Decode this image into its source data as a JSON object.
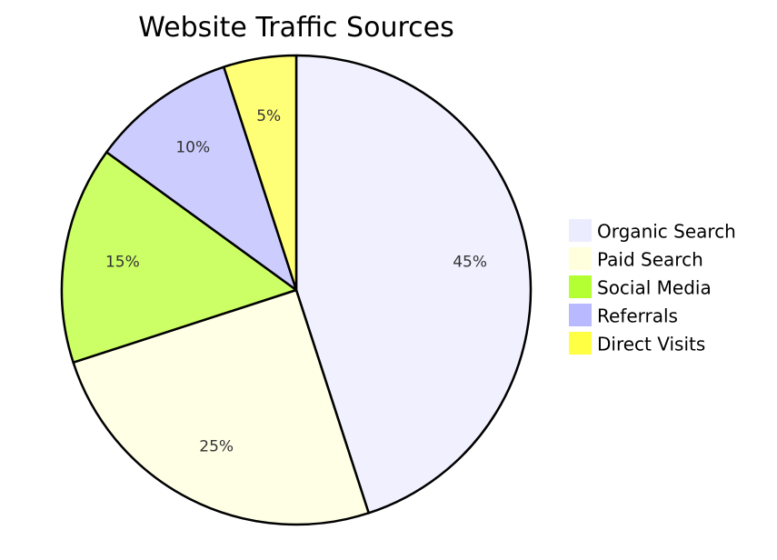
{
  "chart_data": {
    "type": "pie",
    "title": "Website Traffic Sources",
    "categories": [
      "Organic Search",
      "Paid Search",
      "Social Media",
      "Referrals",
      "Direct Visits"
    ],
    "values": [
      45,
      25,
      15,
      10,
      5
    ],
    "labels": [
      "45%",
      "25%",
      "15%",
      "10%",
      "5%"
    ],
    "slice_colors": [
      "#f0f0ff",
      "#ffffe6",
      "#ccff66",
      "#ccccff",
      "#ffff77"
    ],
    "legend_colors": [
      "#ececff",
      "#ffffde",
      "#b3ff33",
      "#b9b9ff",
      "#ffff44"
    ],
    "legend": "right"
  }
}
